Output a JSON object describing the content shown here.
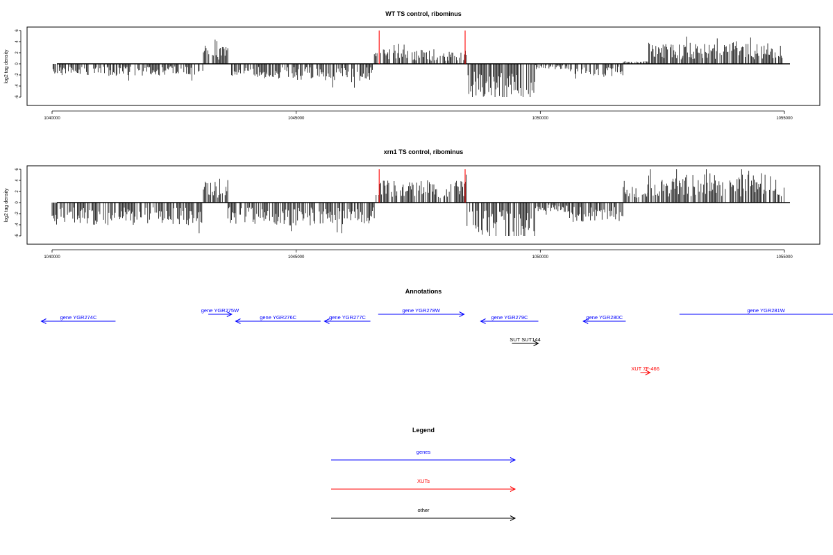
{
  "chart_data": [
    {
      "type": "bar",
      "title": "WT TS control, ribominus",
      "ylabel": "log2 tag density",
      "xlabel": "",
      "xlim": [
        1040000,
        1055000
      ],
      "ylim": [
        -6,
        6
      ],
      "xticks": [
        "1040000",
        "1045000",
        "1050000",
        "1055000"
      ],
      "yticks": [
        "6",
        "4",
        "2",
        "0",
        "-2",
        "-4",
        "-6"
      ],
      "highlight_color": "#ff0000",
      "highlights": [
        {
          "x": 1046700,
          "y": 6
        },
        {
          "x": 1048460,
          "y": 6
        }
      ],
      "profile": [
        {
          "x0": 1040000,
          "x1": 1043100,
          "sign": -1,
          "amp": 1.8
        },
        {
          "x0": 1043100,
          "x1": 1043600,
          "sign": 1,
          "amp": 2.8
        },
        {
          "x0": 1043600,
          "x1": 1044400,
          "sign": -1,
          "amp": 2.0
        },
        {
          "x0": 1044400,
          "x1": 1045600,
          "sign": -1,
          "amp": 2.4
        },
        {
          "x0": 1045600,
          "x1": 1046600,
          "sign": -1,
          "amp": 2.6
        },
        {
          "x0": 1046600,
          "x1": 1048500,
          "sign": 1,
          "amp": 2.2
        },
        {
          "x0": 1048500,
          "x1": 1049900,
          "sign": -1,
          "amp": 5.2
        },
        {
          "x0": 1049900,
          "x1": 1050600,
          "sign": -1,
          "amp": 0.8
        },
        {
          "x0": 1050600,
          "x1": 1051700,
          "sign": -1,
          "amp": 2.0
        },
        {
          "x0": 1051700,
          "x1": 1052200,
          "sign": 1,
          "amp": 0.4
        },
        {
          "x0": 1052200,
          "x1": 1055000,
          "sign": 1,
          "amp": 3.2
        }
      ]
    },
    {
      "type": "bar",
      "title": "xrn1 TS control, ribominus",
      "ylabel": "log2 tag density",
      "xlabel": "",
      "xlim": [
        1040000,
        1055000
      ],
      "ylim": [
        -6,
        6
      ],
      "xticks": [
        "1040000",
        "1045000",
        "1050000",
        "1055000"
      ],
      "yticks": [
        "6",
        "4",
        "2",
        "0",
        "-2",
        "-4",
        "-6"
      ],
      "highlight_color": "#ff0000",
      "highlights": [
        {
          "x": 1046700,
          "y": 6
        },
        {
          "x": 1048460,
          "y": 6
        }
      ],
      "profile": [
        {
          "x0": 1040000,
          "x1": 1043100,
          "sign": -1,
          "amp": 3.4
        },
        {
          "x0": 1043100,
          "x1": 1043600,
          "sign": 1,
          "amp": 3.6
        },
        {
          "x0": 1043600,
          "x1": 1044400,
          "sign": -1,
          "amp": 3.2
        },
        {
          "x0": 1044400,
          "x1": 1045600,
          "sign": -1,
          "amp": 3.6
        },
        {
          "x0": 1045600,
          "x1": 1046600,
          "sign": -1,
          "amp": 3.2
        },
        {
          "x0": 1046600,
          "x1": 1048500,
          "sign": 1,
          "amp": 3.4
        },
        {
          "x0": 1048500,
          "x1": 1049900,
          "sign": -1,
          "amp": 5.6
        },
        {
          "x0": 1049900,
          "x1": 1050600,
          "sign": -1,
          "amp": 1.4
        },
        {
          "x0": 1050600,
          "x1": 1051700,
          "sign": -1,
          "amp": 3.0
        },
        {
          "x0": 1051700,
          "x1": 1052200,
          "sign": 1,
          "amp": 2.4
        },
        {
          "x0": 1052200,
          "x1": 1055000,
          "sign": 1,
          "amp": 4.4
        }
      ]
    }
  ],
  "annotations": {
    "title": "Annotations",
    "features": [
      {
        "label": "gene YGR274C",
        "start": 1041300,
        "end": 1039780,
        "color": "#0000ff"
      },
      {
        "label": "gene YGR275W",
        "start": 1043200,
        "end": 1043680,
        "color": "#0000ff"
      },
      {
        "label": "gene YGR276C",
        "start": 1045500,
        "end": 1043760,
        "color": "#0000ff"
      },
      {
        "label": "gene YGR277C",
        "start": 1046520,
        "end": 1045580,
        "color": "#0000ff"
      },
      {
        "label": "gene YGR278W",
        "start": 1046680,
        "end": 1048440,
        "color": "#0000ff"
      },
      {
        "label": "gene YGR279C",
        "start": 1049960,
        "end": 1048780,
        "color": "#0000ff"
      },
      {
        "label": "gene YGR280C",
        "start": 1051750,
        "end": 1050880,
        "color": "#0000ff"
      },
      {
        "label": "gene YGR281W",
        "start": 1052850,
        "end": 1056400,
        "color": "#0000ff"
      },
      {
        "label": "SUT SUT144",
        "start": 1049420,
        "end": 1049960,
        "color": "#000000"
      },
      {
        "label": "XUT 7F-466",
        "start": 1052050,
        "end": 1052250,
        "color": "#ff0000"
      }
    ]
  },
  "legend": {
    "title": "Legend",
    "items": [
      {
        "label": "genes",
        "color": "#0000ff"
      },
      {
        "label": "XUTs",
        "color": "#ff0000"
      },
      {
        "label": "other",
        "color": "#000000"
      }
    ]
  }
}
